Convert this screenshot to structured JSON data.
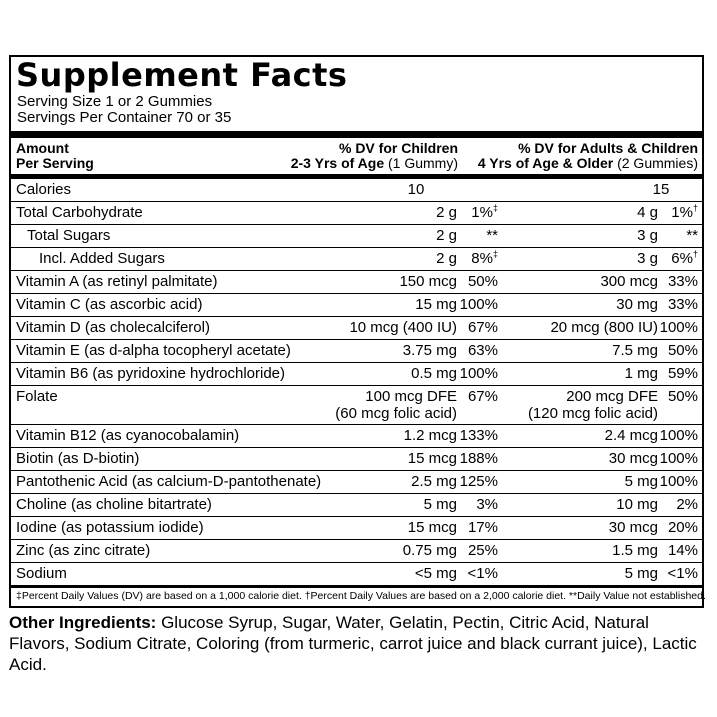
{
  "title": "Supplement Facts",
  "serving_size": "Serving Size 1 or 2 Gummies",
  "servings_per_container": "Servings Per Container 70 or 35",
  "header": {
    "amount": "Amount",
    "per_serving": "Per Serving",
    "col1_line1": "% DV for Children",
    "col1_line2_bold": "2-3 Yrs of Age",
    "col1_line2_light": "(1 Gummy)",
    "col2_line1": "% DV for Adults & Children",
    "col2_line2_bold": "4 Yrs of Age & Older",
    "col2_line2_light": "(2 Gummies)"
  },
  "rows": [
    {
      "name": "Calories",
      "amt1": "10",
      "dv1": "",
      "amt2": "15",
      "dv2": ""
    },
    {
      "name": "Total Carbohydrate",
      "amt1": "2 g",
      "dv1": "1%",
      "dv1_mark": "‡",
      "amt2": "4 g",
      "dv2": "1%",
      "dv2_mark": "†"
    },
    {
      "name": "Total Sugars",
      "amt1": "2 g",
      "dv1": "**",
      "amt2": "3 g",
      "dv2": "**"
    },
    {
      "name": "Incl. Added Sugars",
      "amt1": "2 g",
      "dv1": "8%",
      "dv1_mark": "‡",
      "amt2": "3 g",
      "dv2": "6%",
      "dv2_mark": "†"
    },
    {
      "name": "Vitamin A (as retinyl palmitate)",
      "amt1": "150 mcg",
      "dv1": "50%",
      "amt2": "300 mcg",
      "dv2": "33%"
    },
    {
      "name": "Vitamin C (as ascorbic acid)",
      "amt1": "15 mg",
      "dv1": "100%",
      "amt2": "30 mg",
      "dv2": "33%"
    },
    {
      "name": "Vitamin D (as cholecalciferol)",
      "amt1": "10 mcg (400 IU)",
      "dv1": "67%",
      "amt2": "20 mcg (800 IU)",
      "dv2": "100%"
    },
    {
      "name": "Vitamin E (as d-alpha tocopheryl acetate)",
      "amt1": "3.75 mg",
      "dv1": "63%",
      "amt2": "7.5 mg",
      "dv2": "50%"
    },
    {
      "name": "Vitamin B6 (as pyridoxine hydrochloride)",
      "amt1": "0.5 mg",
      "dv1": "100%",
      "amt2": "1 mg",
      "dv2": "59%"
    },
    {
      "name": "Folate",
      "amt1": "100 mcg DFE",
      "amt1_b": "(60 mcg folic acid)",
      "dv1": "67%",
      "amt2": "200 mcg DFE",
      "amt2_b": "(120 mcg folic acid)",
      "dv2": "50%"
    },
    {
      "name": "Vitamin B12 (as cyanocobalamin)",
      "amt1": "1.2 mcg",
      "dv1": "133%",
      "amt2": "2.4 mcg",
      "dv2": "100%"
    },
    {
      "name": "Biotin (as D-biotin)",
      "amt1": "15 mcg",
      "dv1": "188%",
      "amt2": "30 mcg",
      "dv2": "100%"
    },
    {
      "name": "Pantothenic Acid (as calcium-D-pantothenate)",
      "amt1": "2.5 mg",
      "dv1": "125%",
      "amt2": "5 mg",
      "dv2": "100%"
    },
    {
      "name": "Choline (as choline bitartrate)",
      "amt1": "5 mg",
      "dv1": "3%",
      "amt2": "10 mg",
      "dv2": "2%"
    },
    {
      "name": "Iodine (as potassium iodide)",
      "amt1": "15 mcg",
      "dv1": "17%",
      "amt2": "30 mcg",
      "dv2": "20%"
    },
    {
      "name": "Zinc (as zinc citrate)",
      "amt1": "0.75 mg",
      "dv1": "25%",
      "amt2": "1.5 mg",
      "dv2": "14%"
    },
    {
      "name": "Sodium",
      "amt1": "<5 mg",
      "dv1": "<1%",
      "amt2": "5 mg",
      "dv2": "<1%"
    }
  ],
  "footnote": "‡Percent Daily Values (DV) are based on a 1,000 calorie diet. †Percent Daily Values are based on a 2,000 calorie diet. **Daily Value not established.",
  "other_ingredients_label": "Other Ingredients:",
  "other_ingredients_text": " Glucose Syrup, Sugar, Water, Gelatin, Pectin, Citric Acid, Natural Flavors, Sodium Citrate, Coloring (from turmeric, carrot juice and black currant juice), Lactic Acid."
}
